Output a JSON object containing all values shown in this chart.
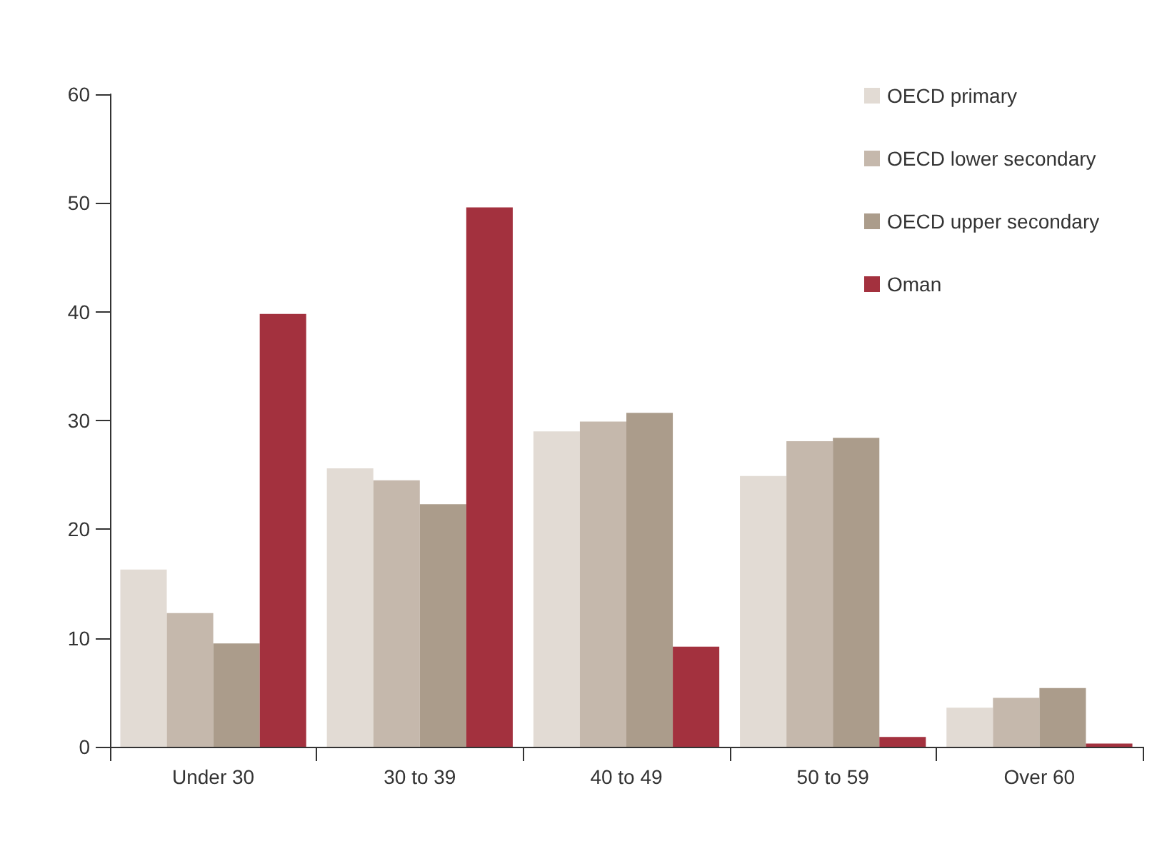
{
  "chart_data": {
    "type": "bar",
    "categories": [
      "Under 30",
      "30 to 39",
      "40 to 49",
      "50 to 59",
      "Over 60"
    ],
    "series": [
      {
        "name": "OECD primary",
        "color": "#e2dbd4",
        "values": [
          16.3,
          25.6,
          29.0,
          24.9,
          3.6
        ]
      },
      {
        "name": "OECD lower secondary",
        "color": "#c5b8ac",
        "values": [
          12.3,
          24.5,
          29.9,
          28.1,
          4.5
        ]
      },
      {
        "name": "OECD upper secondary",
        "color": "#ab9c8b",
        "values": [
          9.5,
          22.3,
          30.7,
          28.4,
          5.4
        ]
      },
      {
        "name": "Oman",
        "color": "#a3313e",
        "values": [
          39.8,
          49.6,
          9.2,
          0.9,
          0.3
        ]
      }
    ],
    "ylim": [
      0,
      60
    ],
    "yticks": [
      0,
      10,
      20,
      30,
      40,
      50,
      60
    ],
    "grid": false,
    "legend": "top right"
  }
}
